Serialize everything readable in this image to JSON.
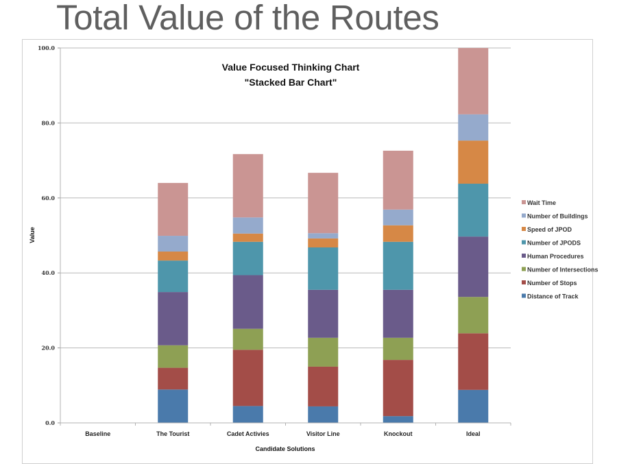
{
  "slide": {
    "title": "Total Value of the Routes"
  },
  "chart_data": {
    "type": "bar",
    "stacked": true,
    "title": "Value Focused Thinking Chart",
    "subtitle": "\"Stacked Bar Chart\"",
    "xlabel": "Candidate Solutions",
    "ylabel": "Value",
    "ylim": [
      0,
      100
    ],
    "yticks": [
      "0.0",
      "20.0",
      "40.0",
      "60.0",
      "80.0",
      "100.0"
    ],
    "ytick_values": [
      0,
      20,
      40,
      60,
      80,
      100
    ],
    "grid": true,
    "legend_position": "right",
    "categories": [
      "Baseline",
      "The Tourist",
      "Cadet Activies",
      "Visitor Line",
      "Knockout",
      "Ideal"
    ],
    "series": [
      {
        "name": "Distance of Track",
        "color": "#4A7AAB",
        "values": [
          0,
          8.9,
          4.5,
          4.4,
          1.8,
          8.8
        ]
      },
      {
        "name": "Number of Stops",
        "color": "#A34D48",
        "values": [
          0,
          5.8,
          15.0,
          10.6,
          15.0,
          15.1
        ]
      },
      {
        "name": "Number of Intersections",
        "color": "#8EA054",
        "values": [
          0,
          6.0,
          5.6,
          7.7,
          5.9,
          9.7
        ]
      },
      {
        "name": "Human Procedures",
        "color": "#6A5B8A",
        "values": [
          0,
          14.2,
          14.3,
          12.8,
          12.8,
          16.1
        ]
      },
      {
        "name": "Number of JPODS",
        "color": "#4E96AB",
        "values": [
          0,
          8.4,
          8.9,
          11.3,
          12.8,
          14.1
        ]
      },
      {
        "name": "Speed of JPOD",
        "color": "#D68846",
        "values": [
          0,
          2.4,
          2.2,
          2.4,
          4.4,
          11.5
        ]
      },
      {
        "name": "Number of Buildings",
        "color": "#95AACC",
        "values": [
          0,
          4.2,
          4.3,
          1.4,
          4.2,
          7.0
        ]
      },
      {
        "name": "Wait Time",
        "color": "#CA9593",
        "values": [
          0,
          14.1,
          16.9,
          16.1,
          15.7,
          17.7
        ]
      }
    ]
  }
}
